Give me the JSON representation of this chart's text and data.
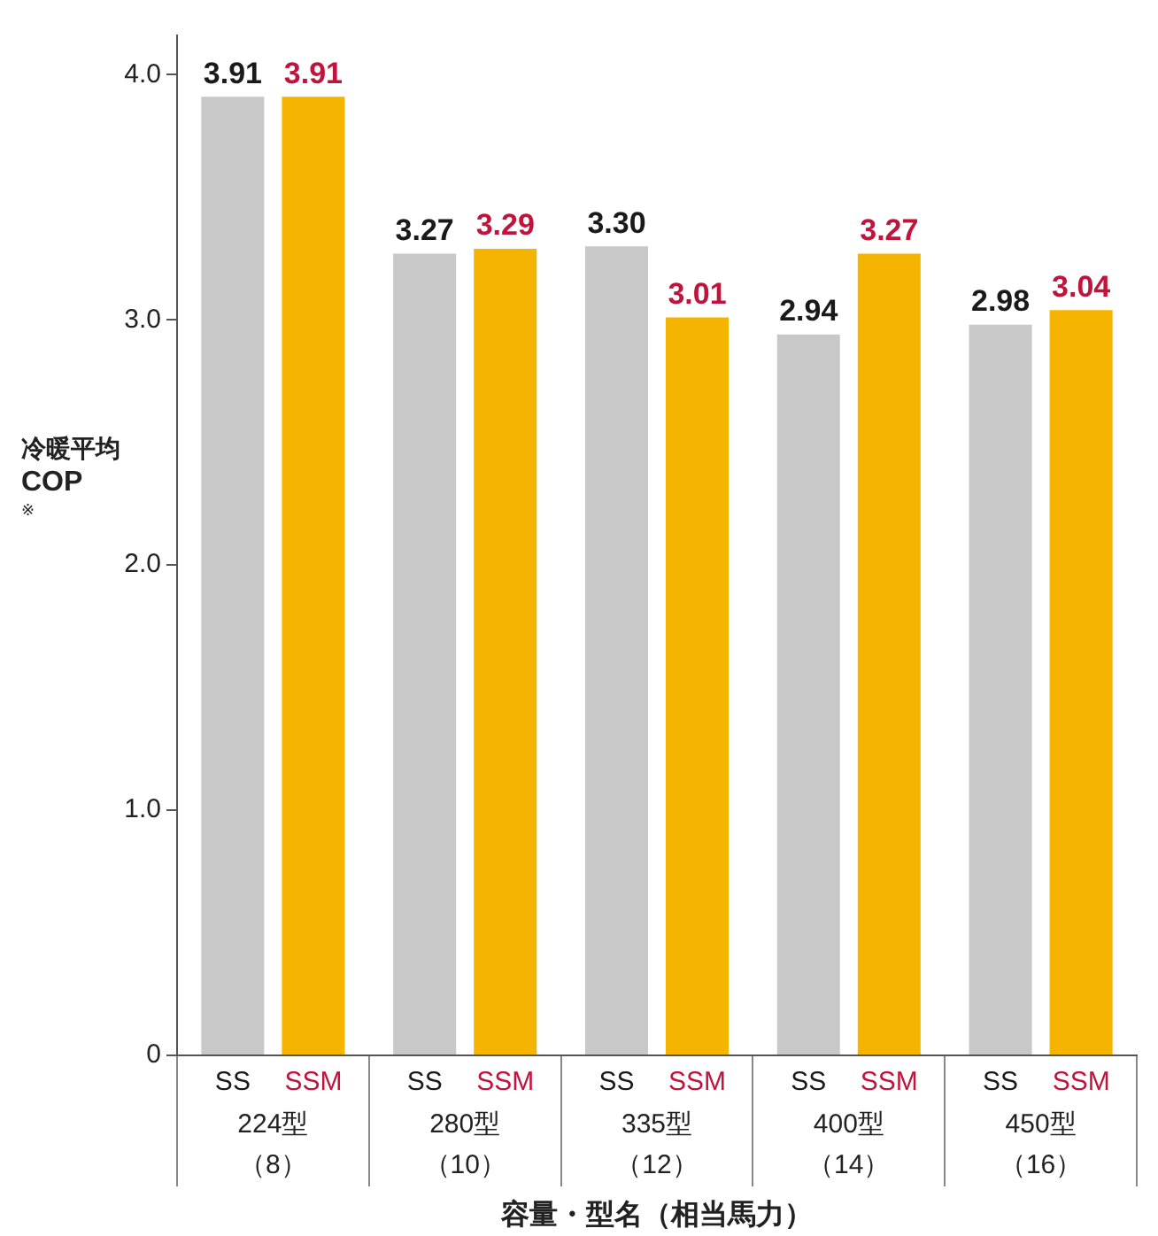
{
  "chart_data": {
    "type": "bar",
    "ylabel": "冷暖平均\nCOP\n※",
    "xlabel": "容量・型名（相当馬力）",
    "categories": [
      "224型（8）",
      "280型（10）",
      "335型（12）",
      "400型（14）",
      "450型（16）"
    ],
    "series": [
      {
        "name": "SS",
        "color": "#c8c8c8",
        "values": [
          3.91,
          3.27,
          3.3,
          2.94,
          2.98
        ],
        "value_labels": [
          "3.91",
          "3.27",
          "3.30",
          "2.94",
          "2.98"
        ]
      },
      {
        "name": "SSM",
        "color": "#f5b400",
        "values": [
          3.91,
          3.29,
          3.01,
          3.27,
          3.04
        ],
        "value_labels": [
          "3.91",
          "3.29",
          "3.01",
          "3.27",
          "3.04"
        ]
      }
    ],
    "ylim": [
      0,
      4.16
    ],
    "yticks": [
      0,
      {
        "value": 1,
        "label": "1.0"
      },
      {
        "value": 2,
        "label": "2.0"
      },
      {
        "value": 3,
        "label": "3.0"
      },
      {
        "value": 4,
        "label": "4.0"
      }
    ],
    "grid": false,
    "legend": false
  }
}
